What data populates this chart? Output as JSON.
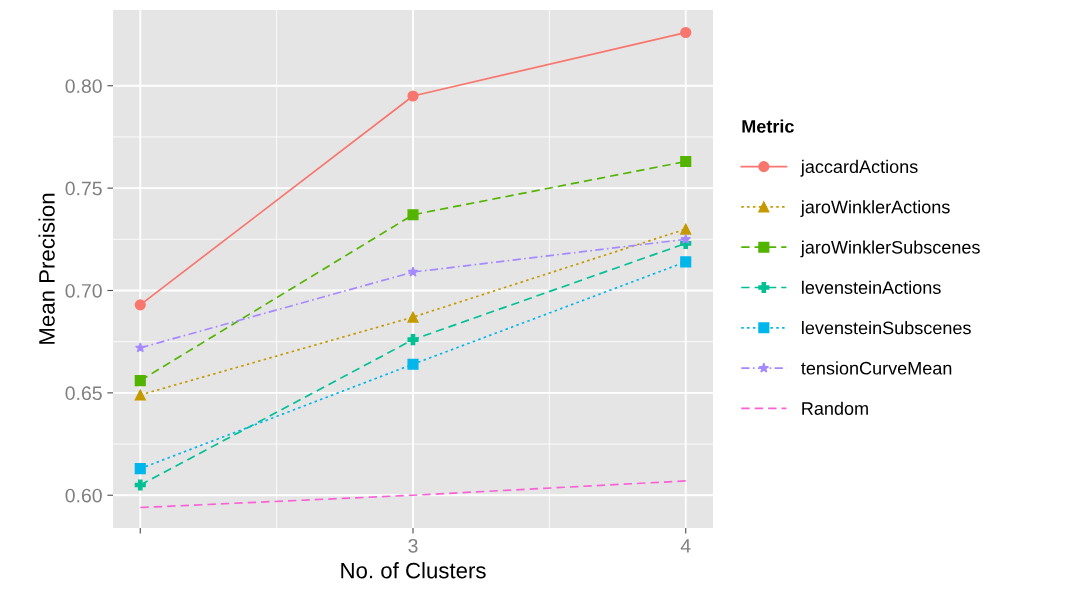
{
  "chart_data": {
    "type": "line",
    "xlabel": "No. of Clusters",
    "ylabel": "Mean Precision",
    "legend_title": "Metric",
    "legend": "right",
    "grid": true,
    "x": [
      2,
      3,
      4
    ],
    "xlim": [
      1.9,
      4.1
    ],
    "xticks": [
      {
        "value": 2,
        "label": null
      },
      3,
      4
    ],
    "ylim": [
      0.584,
      0.837
    ],
    "yticks": [
      {
        "value": 0.6,
        "label": "0.60"
      },
      {
        "value": 0.65,
        "label": "0.65"
      },
      {
        "value": 0.7,
        "label": "0.70"
      },
      {
        "value": 0.75,
        "label": "0.75"
      },
      {
        "value": 0.8,
        "label": "0.80"
      }
    ],
    "series": [
      {
        "name": "jaccardActions",
        "color": "#f8766d",
        "marker": "circle",
        "line_style": "solid",
        "values": [
          0.693,
          0.795,
          0.826
        ]
      },
      {
        "name": "jaroWinklerActions",
        "color": "#c49a00",
        "marker": "triangle",
        "line_style": "dotted",
        "values": [
          0.649,
          0.687,
          0.73
        ]
      },
      {
        "name": "jaroWinklerSubscenes",
        "color": "#53b400",
        "marker": "square",
        "line_style": "dashed",
        "values": [
          0.656,
          0.737,
          0.763
        ]
      },
      {
        "name": "levensteinActions",
        "color": "#00c094",
        "marker": "cross",
        "line_style": "dashed",
        "values": [
          0.605,
          0.676,
          0.723
        ]
      },
      {
        "name": "levensteinSubscenes",
        "color": "#00b6eb",
        "marker": "square",
        "line_style": "dotted",
        "values": [
          0.613,
          0.664,
          0.714
        ]
      },
      {
        "name": "tensionCurveMean",
        "color": "#a58aff",
        "marker": "star",
        "line_style": "dashdot",
        "values": [
          0.672,
          0.709,
          0.725
        ]
      },
      {
        "name": "Random",
        "color": "#fb61d7",
        "marker": "none",
        "line_style": "dashed",
        "values": [
          0.594,
          0.6,
          0.607
        ]
      }
    ]
  }
}
